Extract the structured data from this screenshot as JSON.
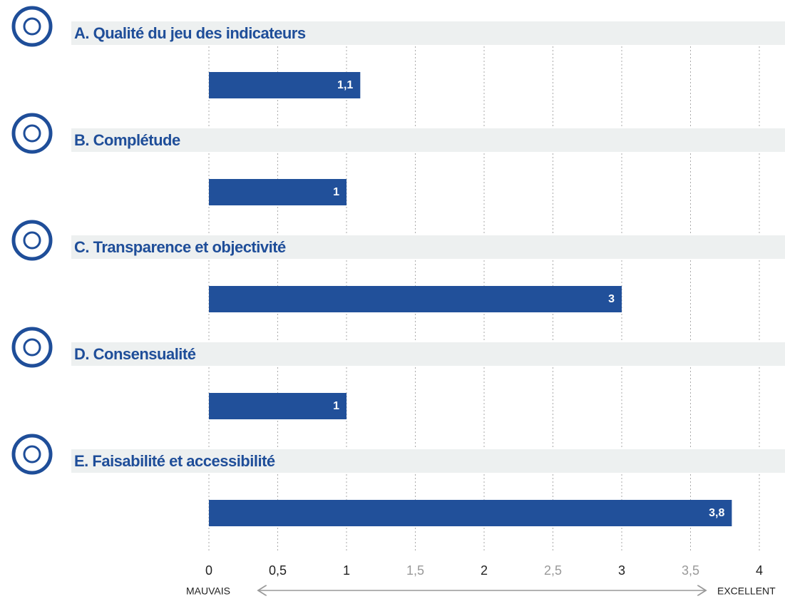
{
  "chart_data": {
    "type": "bar",
    "orientation": "horizontal",
    "categories": [
      "A. Qualité du jeu des indicateurs",
      "B. Complétude",
      "C. Transparence et objectivité",
      "D. Consensualité",
      "E. Faisabilité et accessibilité"
    ],
    "values": [
      1.1,
      1,
      3,
      1,
      3.8
    ],
    "value_labels": [
      "1,1",
      "1",
      "3",
      "1",
      "3,8"
    ],
    "color": "#21509a",
    "xlim": [
      0,
      4
    ],
    "xticks": [
      0,
      {
        "value": 0.5,
        "label": "0,5"
      },
      1,
      {
        "value": 1.5,
        "label": "1,5"
      },
      2,
      {
        "value": 2.5,
        "label": "2,5"
      },
      3,
      {
        "value": 3.5,
        "label": "3,5"
      },
      4
    ],
    "grid": true,
    "axis_low_label": "MAUVAIS",
    "axis_high_label": "EXCELLENT"
  }
}
